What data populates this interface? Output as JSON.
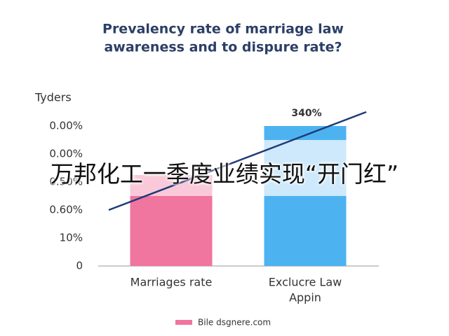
{
  "chart_data": {
    "type": "stacked-bar",
    "title": [
      "Prevalency rate of marriage law",
      "awareness and to dispure rate?"
    ],
    "y_axis_label": "Tyders",
    "y_labels": [
      "0",
      "10%",
      "0.60%",
      "0.50%",
      "0.00%",
      "0.00%"
    ],
    "categories": [
      [
        "Marriages rate"
      ],
      [
        "Exclucre Law",
        "Appin"
      ]
    ],
    "category_colors": [
      [
        "#f0759f",
        "#f9c9d9",
        "#f0759f"
      ],
      [
        "#4db3f0",
        "#cde9fb",
        "#4db3f0"
      ]
    ],
    "series": [
      {
        "values": [
          2.5,
          2.5
        ]
      },
      {
        "values": [
          0.75,
          2.0
        ]
      },
      {
        "values": [
          null,
          0.5
        ]
      }
    ],
    "annotation": "340%",
    "trend_line": {
      "color": "#1f3a78",
      "values": [
        2.0,
        5.5
      ]
    },
    "ylim": [
      0,
      5.5
    ],
    "legend": {
      "label": "Bile dsgnere.com",
      "color": "#f0759f"
    }
  },
  "overlay_caption": "万邦化工一季度业绩实现“开门红”"
}
